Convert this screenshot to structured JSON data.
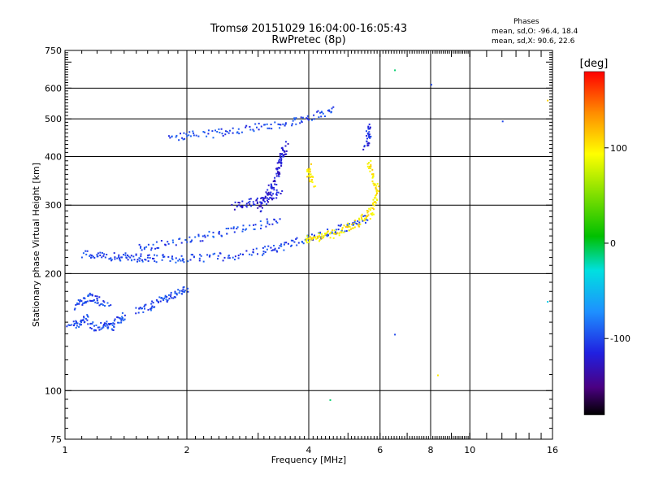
{
  "chart_data": {
    "type": "scatter",
    "title": "Tromsø 20151029 16:04:00-16:05:43",
    "subtitle": "RwPretec (8p)",
    "xlabel": "Frequency [MHz]",
    "ylabel": "Stationary phase Virtual Height [km]",
    "x_scale": "log",
    "y_scale": "log",
    "xlim": [
      1,
      16
    ],
    "ylim": [
      75,
      750
    ],
    "x_ticks": [
      1,
      2,
      4,
      6,
      8,
      10,
      16
    ],
    "y_ticks": [
      75,
      100,
      200,
      300,
      400,
      500,
      600,
      750
    ],
    "grid": true,
    "phase_legend": {
      "title": "Phases",
      "line_o": "mean, sd,O:  -96.4, 18.4",
      "line_x": "mean, sd,X:  90.6, 22.6"
    },
    "colorbar": {
      "label": "[deg]",
      "ticks": [
        "100",
        "0",
        "-100"
      ],
      "tick_values": [
        100,
        0,
        -100
      ],
      "range": [
        -180,
        180
      ]
    },
    "traces": [
      {
        "name": "",
        "phase": -100,
        "points": [
          [
            1.02,
            150
          ],
          [
            1.08,
            148
          ],
          [
            1.12,
            155
          ],
          [
            1.18,
            145
          ],
          [
            1.25,
            150
          ],
          [
            1.3,
            146
          ],
          [
            1.35,
            152
          ],
          [
            1.4,
            158
          ]
        ]
      },
      {
        "name": "",
        "phase": -100,
        "points": [
          [
            1.05,
            165
          ],
          [
            1.1,
            170
          ],
          [
            1.15,
            175
          ],
          [
            1.2,
            172
          ],
          [
            1.28,
            168
          ]
        ]
      },
      {
        "name": "",
        "phase": -100,
        "points": [
          [
            1.1,
            225
          ],
          [
            1.2,
            223
          ],
          [
            1.3,
            222
          ],
          [
            1.4,
            222
          ],
          [
            1.5,
            221
          ],
          [
            1.6,
            220
          ],
          [
            1.8,
            219
          ],
          [
            2.0,
            220
          ],
          [
            2.3,
            221
          ],
          [
            2.6,
            223
          ],
          [
            3.0,
            228
          ],
          [
            3.3,
            233
          ],
          [
            3.6,
            240
          ],
          [
            4.0,
            248
          ],
          [
            4.4,
            255
          ],
          [
            4.8,
            262
          ],
          [
            5.2,
            270
          ],
          [
            5.6,
            280
          ]
        ]
      },
      {
        "name": "",
        "phase": -100,
        "points": [
          [
            1.5,
            235
          ],
          [
            1.7,
            238
          ],
          [
            2.0,
            245
          ],
          [
            2.3,
            252
          ],
          [
            2.6,
            260
          ],
          [
            3.0,
            268
          ],
          [
            3.4,
            275
          ]
        ]
      },
      {
        "name": "",
        "phase": -100,
        "points": [
          [
            1.5,
            160
          ],
          [
            1.6,
            165
          ],
          [
            1.7,
            170
          ],
          [
            1.8,
            175
          ],
          [
            1.9,
            180
          ],
          [
            2.0,
            185
          ]
        ]
      },
      {
        "name": "",
        "phase": -100,
        "points": [
          [
            1.8,
            450
          ],
          [
            2.0,
            455
          ],
          [
            2.3,
            460
          ],
          [
            2.6,
            468
          ],
          [
            3.0,
            478
          ],
          [
            3.4,
            488
          ],
          [
            3.8,
            500
          ],
          [
            4.2,
            515
          ],
          [
            4.6,
            530
          ]
        ]
      },
      {
        "name": "",
        "phase": -120,
        "points": [
          [
            3.0,
            290
          ],
          [
            3.1,
            310
          ],
          [
            3.2,
            330
          ],
          [
            3.3,
            350
          ],
          [
            3.35,
            370
          ],
          [
            3.4,
            390
          ],
          [
            3.45,
            410
          ],
          [
            3.5,
            430
          ]
        ]
      },
      {
        "name": "",
        "phase": -120,
        "points": [
          [
            2.6,
            300
          ],
          [
            2.8,
            305
          ],
          [
            3.0,
            310
          ],
          [
            3.2,
            318
          ],
          [
            3.4,
            325
          ]
        ]
      },
      {
        "name": "",
        "phase": 100,
        "points": [
          [
            3.9,
            245
          ],
          [
            4.1,
            248
          ],
          [
            4.3,
            250
          ],
          [
            4.6,
            255
          ],
          [
            4.9,
            262
          ],
          [
            5.2,
            270
          ],
          [
            5.5,
            280
          ],
          [
            5.7,
            290
          ],
          [
            5.8,
            310
          ],
          [
            5.9,
            330
          ],
          [
            5.7,
            360
          ],
          [
            5.6,
            390
          ]
        ]
      },
      {
        "name": "",
        "phase": 100,
        "points": [
          [
            4.0,
            380
          ],
          [
            4.0,
            360
          ],
          [
            4.1,
            340
          ]
        ]
      },
      {
        "name": "",
        "phase": -110,
        "points": [
          [
            5.6,
            480
          ],
          [
            5.6,
            450
          ],
          [
            5.5,
            420
          ]
        ]
      }
    ],
    "outliers": [
      {
        "x": 4.5,
        "y": 95,
        "phase": -10
      },
      {
        "x": 6.5,
        "y": 140,
        "phase": -100
      },
      {
        "x": 8.3,
        "y": 110,
        "phase": 100
      },
      {
        "x": 12.0,
        "y": 495,
        "phase": -100
      },
      {
        "x": 15.5,
        "y": 170,
        "phase": -40
      },
      {
        "x": 15.5,
        "y": 560,
        "phase": 110
      },
      {
        "x": 8.0,
        "y": 615,
        "phase": -100
      },
      {
        "x": 6.5,
        "y": 670,
        "phase": -10
      }
    ]
  }
}
